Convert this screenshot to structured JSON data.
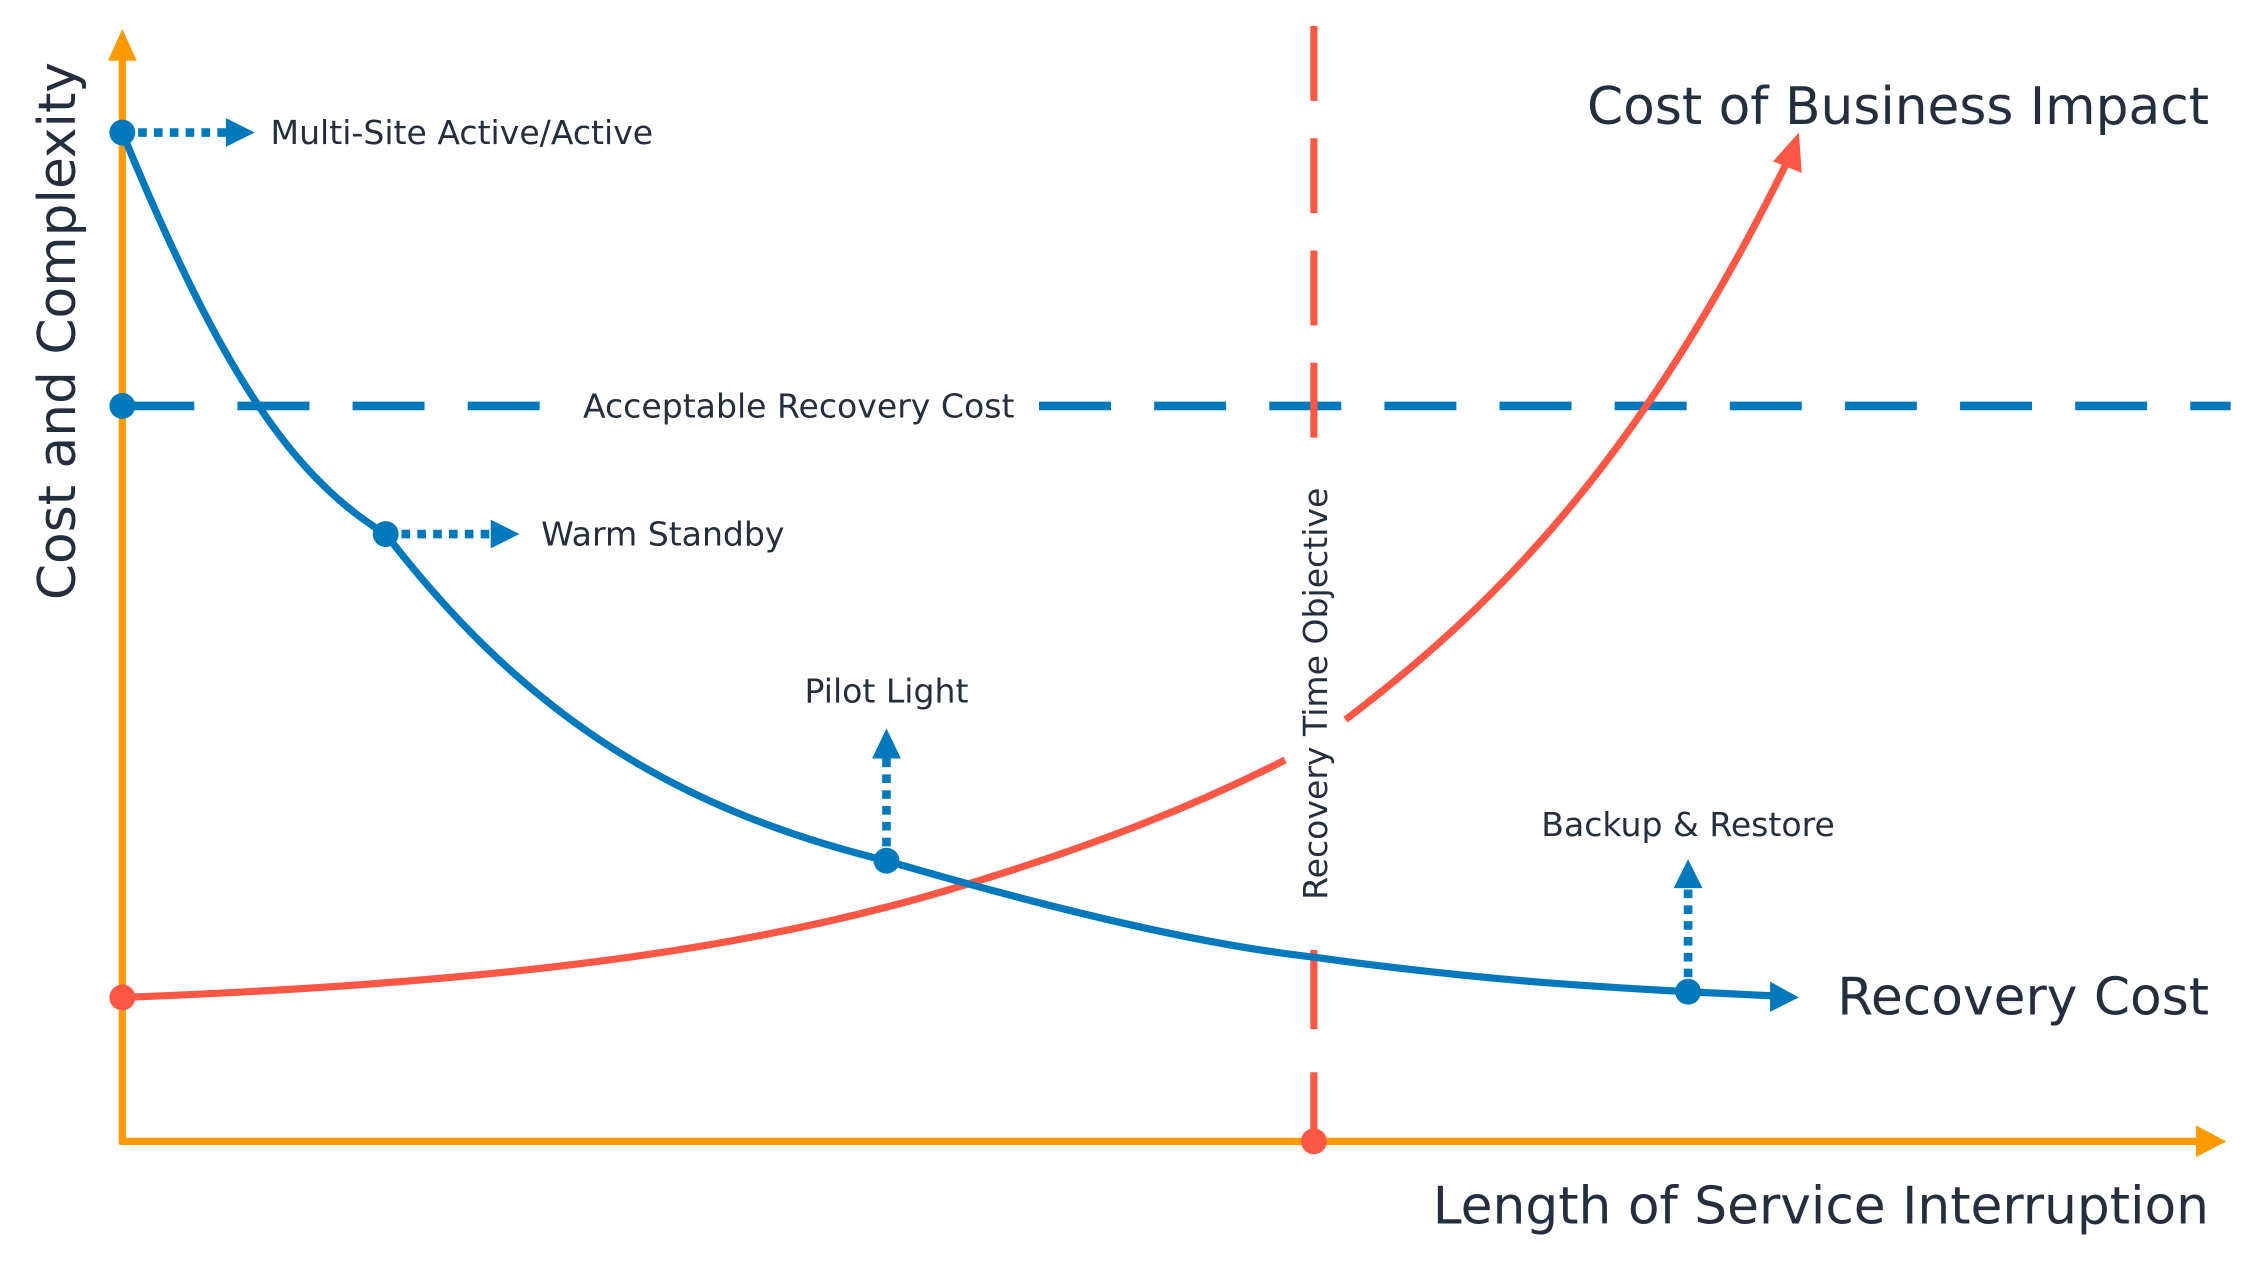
{
  "axes": {
    "y_label": "Cost and Complexity",
    "x_label": "Length of Service Interruption"
  },
  "curves": {
    "recovery_cost": "Recovery Cost",
    "business_impact": "Cost of Business Impact"
  },
  "thresholds": {
    "acceptable_recovery_cost": "Acceptable Recovery Cost",
    "recovery_time_objective": "Recovery Time Objective"
  },
  "strategies": [
    {
      "label": "Multi-Site Active/Active"
    },
    {
      "label": "Warm Standby"
    },
    {
      "label": "Pilot Light"
    },
    {
      "label": "Backup & Restore"
    }
  ],
  "colors": {
    "axis": "#ff9900",
    "recovery_cost": "#0079bc",
    "business_impact": "#ff5745",
    "text": "#232f3e"
  }
}
